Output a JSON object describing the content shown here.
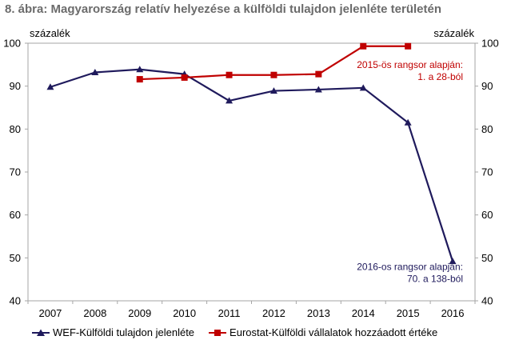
{
  "title": "8. ábra: Magyarország relatív helyezése a külföldi tulajdon jelenléte területén",
  "chart_data": {
    "type": "line",
    "categories": [
      "2007",
      "2008",
      "2009",
      "2010",
      "2011",
      "2012",
      "2013",
      "2014",
      "2015",
      "2016"
    ],
    "ylim": [
      40,
      100
    ],
    "yticks": [
      "40",
      "50",
      "60",
      "70",
      "80",
      "90",
      "100"
    ],
    "ylabel_left": "százalék",
    "ylabel_right": "százalék",
    "grid": false,
    "legend_position": "bottom",
    "series": [
      {
        "name": "WEF-Külföldi tulajdon jelenléte",
        "color": "#1f1a5c",
        "marker": "triangle",
        "values": [
          89.8,
          93.2,
          93.9,
          92.8,
          86.6,
          88.9,
          89.2,
          89.6,
          81.5,
          49.2
        ]
      },
      {
        "name": "Eurostat-Külföldi vállalatok hozzáadott értéke",
        "color": "#c00000",
        "marker": "square",
        "values": [
          null,
          null,
          91.6,
          92.0,
          92.6,
          92.6,
          92.8,
          99.3,
          99.3,
          null
        ]
      }
    ],
    "annotations": [
      {
        "lines": [
          "2015-ös rangsor alapján:",
          "1. a 28-ból"
        ],
        "color": "#c00000"
      },
      {
        "lines": [
          "2016-os rangsor alapján:",
          "70. a 138-ból"
        ],
        "color": "#1f1a5c"
      }
    ]
  }
}
